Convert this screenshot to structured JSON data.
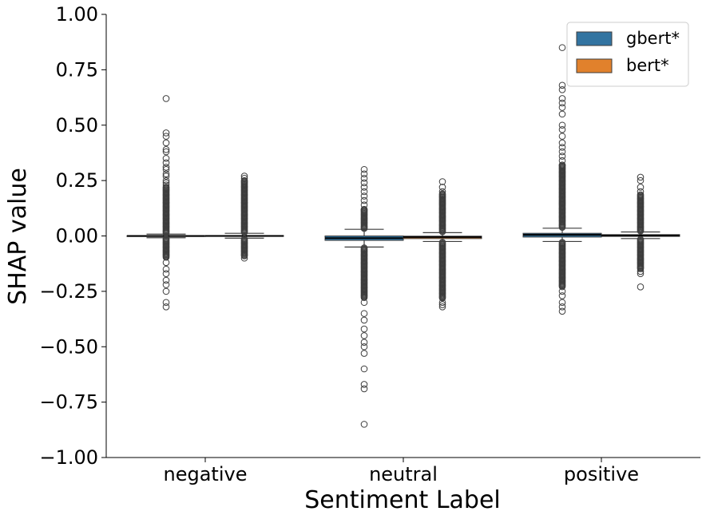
{
  "chart_data": {
    "type": "box",
    "xlabel": "Sentiment Label",
    "ylabel": "SHAP value",
    "ylim": [
      -1.0,
      1.0
    ],
    "yticks": [
      -1.0,
      -0.75,
      -0.5,
      -0.25,
      0.0,
      0.25,
      0.5,
      0.75,
      1.0
    ],
    "ytick_labels": [
      "−1.00",
      "−0.75",
      "−0.50",
      "−0.25",
      "0.00",
      "0.25",
      "0.50",
      "0.75",
      "1.00"
    ],
    "categories": [
      "negative",
      "neutral",
      "positive"
    ],
    "legend_position": "top-right",
    "series": [
      {
        "name": "gbert*",
        "color": "#3274a1",
        "boxes": [
          {
            "q1": -0.001,
            "median": 0.0,
            "q3": 0.001,
            "whisker_low": -0.008,
            "whisker_high": 0.008,
            "outliers": [
              0.62,
              0.465,
              0.45,
              0.42,
              0.39,
              0.38,
              0.35,
              0.33,
              0.31,
              0.3,
              0.28,
              0.27,
              0.25,
              0.24,
              0.23,
              0.22,
              -0.12,
              -0.15,
              -0.17,
              -0.2,
              -0.22,
              -0.25,
              -0.3,
              -0.32
            ],
            "dense_up": 0.22,
            "dense_down": -0.1
          },
          {
            "q1": -0.02,
            "median": -0.01,
            "q3": 0.0,
            "whisker_low": -0.05,
            "whisker_high": 0.03,
            "outliers": [
              0.3,
              0.28,
              0.26,
              0.24,
              0.22,
              0.2,
              0.18,
              0.16,
              0.14,
              0.12,
              -0.3,
              -0.35,
              -0.38,
              -0.42,
              -0.45,
              -0.48,
              -0.5,
              -0.53,
              -0.6,
              -0.67,
              -0.69,
              -0.85
            ],
            "dense_up": 0.12,
            "dense_down": -0.28
          },
          {
            "q1": -0.005,
            "median": 0.005,
            "q3": 0.012,
            "whisker_low": -0.025,
            "whisker_high": 0.035,
            "outliers": [
              0.85,
              0.68,
              0.66,
              0.62,
              0.6,
              0.58,
              0.55,
              0.5,
              0.48,
              0.45,
              0.42,
              0.4,
              0.38,
              0.36,
              0.34,
              0.32,
              -0.25,
              -0.27,
              -0.3,
              -0.32,
              -0.34
            ],
            "dense_up": 0.32,
            "dense_down": -0.23
          }
        ]
      },
      {
        "name": "bert*",
        "color": "#e1812c",
        "boxes": [
          {
            "q1": -0.002,
            "median": 0.0,
            "q3": 0.002,
            "whisker_low": -0.01,
            "whisker_high": 0.012,
            "outliers": [
              0.27,
              0.26,
              0.25,
              -0.09,
              -0.1
            ],
            "dense_up": 0.25,
            "dense_down": -0.09
          },
          {
            "q1": -0.012,
            "median": -0.005,
            "q3": -0.001,
            "whisker_low": -0.025,
            "whisker_high": 0.015,
            "outliers": [
              0.245,
              0.22,
              0.2,
              0.19,
              -0.28,
              -0.3,
              -0.31,
              -0.32
            ],
            "dense_up": 0.19,
            "dense_down": -0.28
          },
          {
            "q1": -0.002,
            "median": 0.002,
            "q3": 0.006,
            "whisker_low": -0.012,
            "whisker_high": 0.018,
            "outliers": [
              0.265,
              0.25,
              0.22,
              0.2,
              -0.16,
              -0.17,
              -0.23
            ],
            "dense_up": 0.19,
            "dense_down": -0.15
          }
        ]
      }
    ]
  }
}
